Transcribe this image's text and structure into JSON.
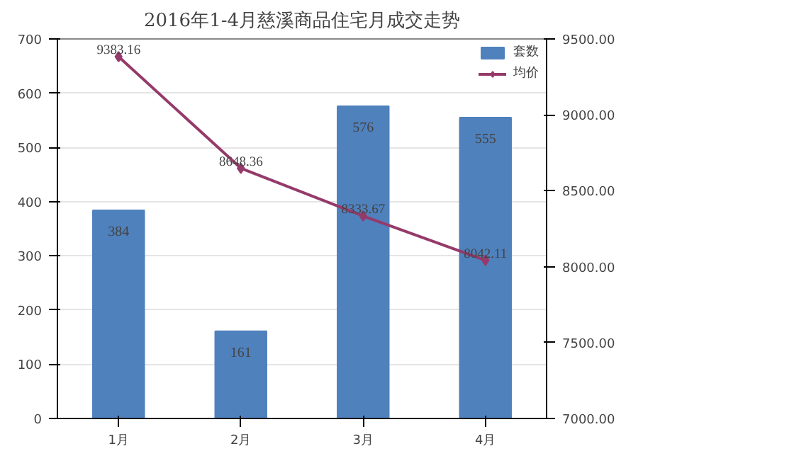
{
  "chart_data": {
    "type": "bar",
    "title": "2016年1-4月慈溪商品住宅月成交走势",
    "categories": [
      "1月",
      "2月",
      "3月",
      "4月"
    ],
    "series": [
      {
        "name": "套数",
        "type": "bar",
        "color": "#4f81bd",
        "values": [
          384,
          161,
          576,
          555
        ],
        "value_labels": [
          "384",
          "161",
          "576",
          "555"
        ]
      },
      {
        "name": "均价",
        "type": "line",
        "axis": "y2",
        "color": "#953a6a",
        "marker": "diamond",
        "values": [
          9383.16,
          8648.36,
          8333.67,
          8042.11
        ],
        "value_labels": [
          "9383.16",
          "8648.36",
          "8333.67",
          "8042.11"
        ]
      }
    ],
    "ylim": [
      0,
      700
    ],
    "yticks": [
      0,
      100,
      200,
      300,
      400,
      500,
      600,
      700
    ],
    "y2lim": [
      7000,
      9500
    ],
    "y2ticks": [
      {
        "value": 7000,
        "label": "7000.00"
      },
      {
        "value": 7500,
        "label": "7500.00"
      },
      {
        "value": 8000,
        "label": "8000.00"
      },
      {
        "value": 8500,
        "label": "8500.00"
      },
      {
        "value": 9000,
        "label": "9000.00"
      },
      {
        "value": 9500,
        "label": "9500.00"
      }
    ],
    "grid": "y",
    "legend": "top right"
  }
}
